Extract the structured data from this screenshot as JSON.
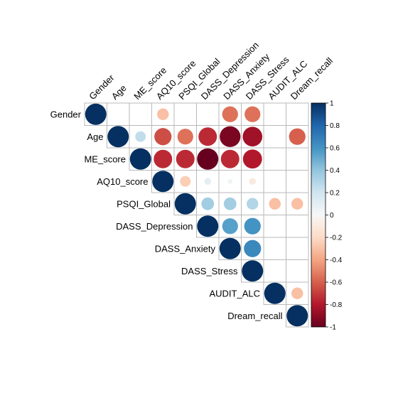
{
  "chart_data": {
    "type": "heatmap",
    "subtype": "upper-triangle correlation plot with circles",
    "variables": [
      "Gender",
      "Age",
      "ME_score",
      "AQ10_score",
      "PSQI_Global",
      "DASS_Depression",
      "DASS_Anxiety",
      "DASS_Stress",
      "AUDIT_ALC",
      "Dream_recall"
    ],
    "matrix": [
      [
        1,
        null,
        null,
        -0.3,
        null,
        null,
        -0.55,
        -0.55,
        null,
        null
      ],
      [
        null,
        1,
        0.25,
        -0.65,
        -0.55,
        -0.75,
        -0.95,
        -0.85,
        null,
        -0.6
      ],
      [
        null,
        null,
        1,
        -0.75,
        -0.75,
        -1.0,
        -0.75,
        -0.8,
        null,
        null
      ],
      [
        null,
        null,
        null,
        1,
        -0.25,
        0.1,
        0.05,
        -0.1,
        null,
        null
      ],
      [
        null,
        null,
        null,
        null,
        1,
        0.35,
        0.35,
        0.3,
        -0.3,
        -0.3
      ],
      [
        null,
        null,
        null,
        null,
        null,
        1,
        0.55,
        0.6,
        null,
        null
      ],
      [
        null,
        null,
        null,
        null,
        null,
        null,
        1,
        0.65,
        null,
        null
      ],
      [
        null,
        null,
        null,
        null,
        null,
        null,
        null,
        1,
        null,
        null
      ],
      [
        null,
        null,
        null,
        null,
        null,
        null,
        null,
        null,
        1,
        -0.3
      ],
      [
        null,
        null,
        null,
        null,
        null,
        null,
        null,
        null,
        null,
        1
      ]
    ],
    "colorbar": {
      "range": [
        -1,
        1
      ],
      "ticks": [
        "1",
        "0.8",
        "0.6",
        "0.4",
        "0.2",
        "0",
        "-0.2",
        "-0.4",
        "-0.6",
        "-0.8",
        "-1"
      ],
      "placement": "right"
    },
    "colors": {
      "negative_end": "#67001f",
      "neutral": "#f7f7f7",
      "positive_end": "#053061",
      "grid": "#b9b9b9"
    }
  }
}
